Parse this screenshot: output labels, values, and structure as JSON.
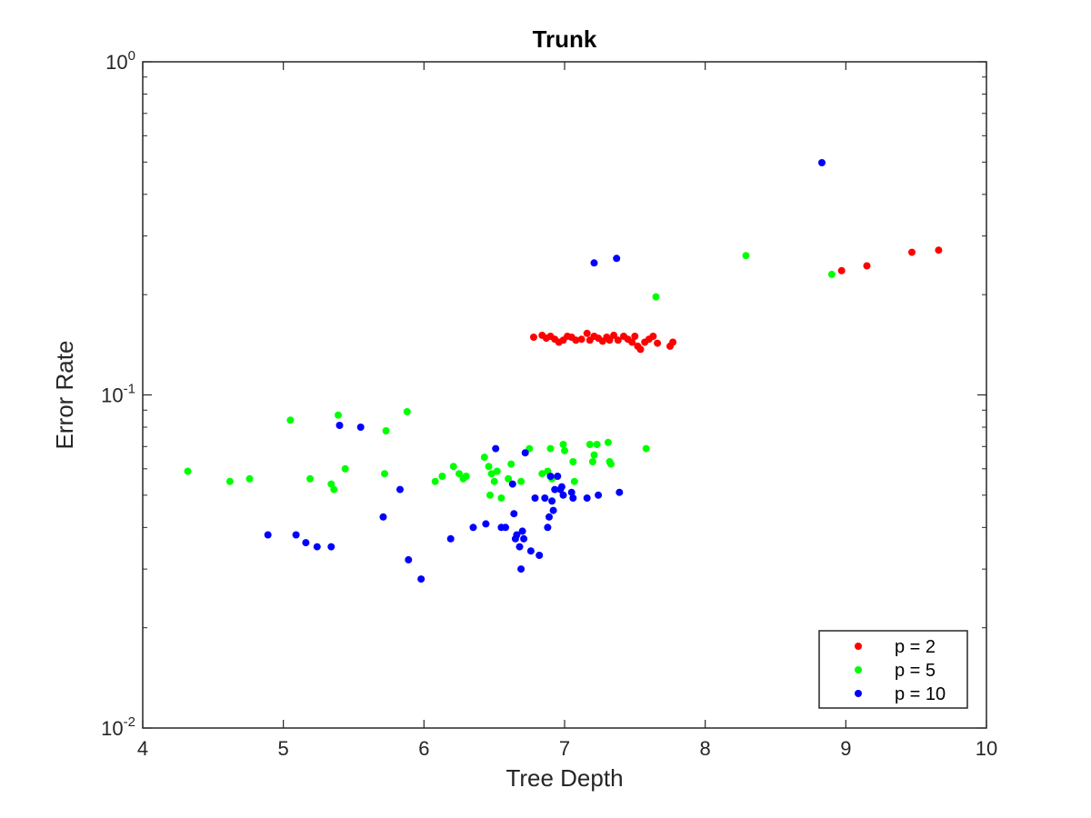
{
  "chart_data": {
    "type": "scatter",
    "title": "Trunk",
    "xlabel": "Tree Depth",
    "ylabel": "Error Rate",
    "xlim": [
      4,
      10
    ],
    "ylim": [
      0.01,
      1
    ],
    "yscale": "log",
    "x_ticks": [
      4,
      5,
      6,
      7,
      8,
      9,
      10
    ],
    "y_ticks": [
      {
        "value": 0.01,
        "base": "10",
        "exp": "-2"
      },
      {
        "value": 0.1,
        "base": "10",
        "exp": "-1"
      },
      {
        "value": 1,
        "base": "10",
        "exp": "0"
      }
    ],
    "grid": false,
    "legend_position": "bottom-right",
    "series": [
      {
        "name": "p = 2",
        "color": "#ff0000",
        "points": [
          [
            6.78,
            0.149
          ],
          [
            6.84,
            0.151
          ],
          [
            6.87,
            0.148
          ],
          [
            6.9,
            0.15
          ],
          [
            6.93,
            0.147
          ],
          [
            6.96,
            0.144
          ],
          [
            6.99,
            0.146
          ],
          [
            7.02,
            0.15
          ],
          [
            7.05,
            0.149
          ],
          [
            7.08,
            0.146
          ],
          [
            7.12,
            0.147
          ],
          [
            7.16,
            0.153
          ],
          [
            7.18,
            0.146
          ],
          [
            7.21,
            0.15
          ],
          [
            7.24,
            0.148
          ],
          [
            7.27,
            0.145
          ],
          [
            7.3,
            0.149
          ],
          [
            7.32,
            0.146
          ],
          [
            7.35,
            0.151
          ],
          [
            7.38,
            0.146
          ],
          [
            7.42,
            0.15
          ],
          [
            7.45,
            0.147
          ],
          [
            7.48,
            0.144
          ],
          [
            7.5,
            0.15
          ],
          [
            7.52,
            0.14
          ],
          [
            7.54,
            0.137
          ],
          [
            7.57,
            0.144
          ],
          [
            7.6,
            0.147
          ],
          [
            7.63,
            0.15
          ],
          [
            7.66,
            0.143
          ],
          [
            7.75,
            0.14
          ],
          [
            7.77,
            0.144
          ],
          [
            8.97,
            0.236
          ],
          [
            9.15,
            0.244
          ],
          [
            9.47,
            0.268
          ],
          [
            9.66,
            0.272
          ]
        ]
      },
      {
        "name": "p = 5",
        "color": "#00ff00",
        "points": [
          [
            4.32,
            0.059
          ],
          [
            4.62,
            0.055
          ],
          [
            4.76,
            0.056
          ],
          [
            5.05,
            0.084
          ],
          [
            5.19,
            0.056
          ],
          [
            5.34,
            0.054
          ],
          [
            5.36,
            0.052
          ],
          [
            5.39,
            0.087
          ],
          [
            5.44,
            0.06
          ],
          [
            5.72,
            0.058
          ],
          [
            5.73,
            0.078
          ],
          [
            5.88,
            0.089
          ],
          [
            6.08,
            0.055
          ],
          [
            6.13,
            0.057
          ],
          [
            6.21,
            0.061
          ],
          [
            6.25,
            0.058
          ],
          [
            6.28,
            0.056
          ],
          [
            6.3,
            0.057
          ],
          [
            6.43,
            0.065
          ],
          [
            6.46,
            0.061
          ],
          [
            6.47,
            0.05
          ],
          [
            6.48,
            0.058
          ],
          [
            6.5,
            0.055
          ],
          [
            6.52,
            0.059
          ],
          [
            6.55,
            0.049
          ],
          [
            6.6,
            0.056
          ],
          [
            6.62,
            0.062
          ],
          [
            6.69,
            0.055
          ],
          [
            6.75,
            0.069
          ],
          [
            6.84,
            0.058
          ],
          [
            6.88,
            0.059
          ],
          [
            6.9,
            0.069
          ],
          [
            6.91,
            0.056
          ],
          [
            6.99,
            0.071
          ],
          [
            7.0,
            0.068
          ],
          [
            7.06,
            0.063
          ],
          [
            7.07,
            0.055
          ],
          [
            7.18,
            0.071
          ],
          [
            7.2,
            0.063
          ],
          [
            7.21,
            0.066
          ],
          [
            7.23,
            0.071
          ],
          [
            7.31,
            0.072
          ],
          [
            7.32,
            0.063
          ],
          [
            7.33,
            0.062
          ],
          [
            7.58,
            0.069
          ],
          [
            7.65,
            0.197
          ],
          [
            8.29,
            0.262
          ],
          [
            8.9,
            0.23
          ]
        ]
      },
      {
        "name": "p = 10",
        "color": "#0000ff",
        "points": [
          [
            4.89,
            0.038
          ],
          [
            5.09,
            0.038
          ],
          [
            5.16,
            0.036
          ],
          [
            5.24,
            0.035
          ],
          [
            5.34,
            0.035
          ],
          [
            5.4,
            0.081
          ],
          [
            5.55,
            0.08
          ],
          [
            5.71,
            0.043
          ],
          [
            5.83,
            0.052
          ],
          [
            5.89,
            0.032
          ],
          [
            5.98,
            0.028
          ],
          [
            6.19,
            0.037
          ],
          [
            6.35,
            0.04
          ],
          [
            6.44,
            0.041
          ],
          [
            6.51,
            0.069
          ],
          [
            6.55,
            0.04
          ],
          [
            6.58,
            0.04
          ],
          [
            6.63,
            0.054
          ],
          [
            6.64,
            0.044
          ],
          [
            6.65,
            0.037
          ],
          [
            6.66,
            0.038
          ],
          [
            6.68,
            0.035
          ],
          [
            6.69,
            0.03
          ],
          [
            6.7,
            0.039
          ],
          [
            6.71,
            0.037
          ],
          [
            6.72,
            0.067
          ],
          [
            6.76,
            0.034
          ],
          [
            6.79,
            0.049
          ],
          [
            6.82,
            0.033
          ],
          [
            6.86,
            0.049
          ],
          [
            6.88,
            0.04
          ],
          [
            6.89,
            0.043
          ],
          [
            6.9,
            0.057
          ],
          [
            6.91,
            0.048
          ],
          [
            6.92,
            0.045
          ],
          [
            6.93,
            0.052
          ],
          [
            6.95,
            0.057
          ],
          [
            6.97,
            0.052
          ],
          [
            6.98,
            0.053
          ],
          [
            6.99,
            0.05
          ],
          [
            7.05,
            0.051
          ],
          [
            7.06,
            0.049
          ],
          [
            7.16,
            0.049
          ],
          [
            7.21,
            0.249
          ],
          [
            7.24,
            0.05
          ],
          [
            7.37,
            0.257
          ],
          [
            7.39,
            0.051
          ],
          [
            8.83,
            0.498
          ]
        ]
      }
    ]
  }
}
